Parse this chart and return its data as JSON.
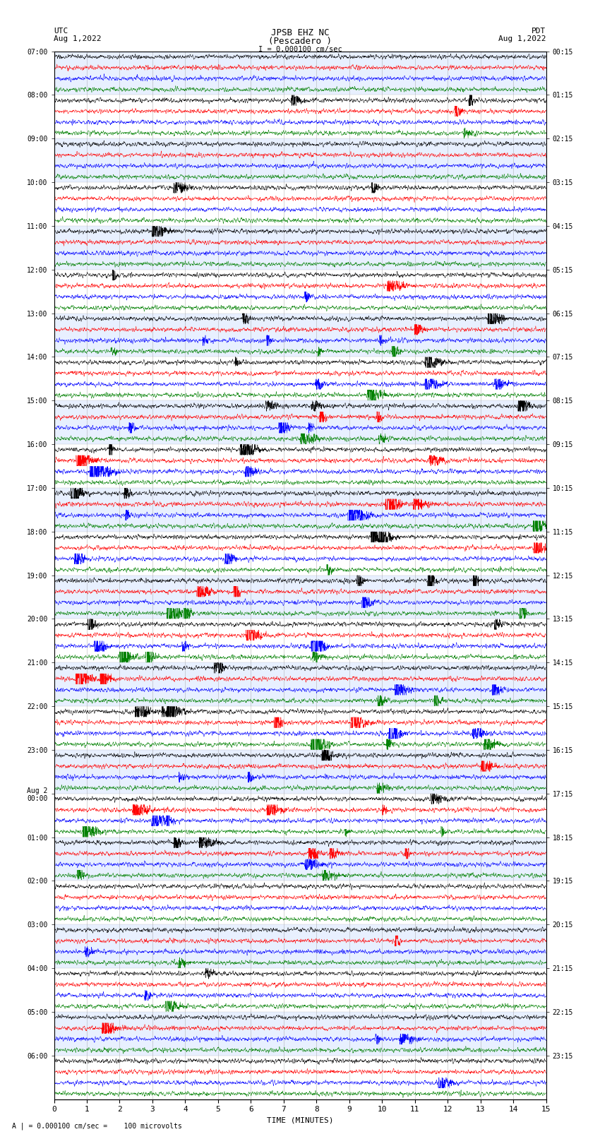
{
  "title_line1": "JPSB EHZ NC",
  "title_line2": "(Pescadero )",
  "scale_text": "I = 0.000100 cm/sec",
  "left_header_line1": "UTC",
  "left_header_line2": "Aug 1,2022",
  "right_header_line1": "PDT",
  "right_header_line2": "Aug 1,2022",
  "bottom_note": "A | = 0.000100 cm/sec =    100 microvolts",
  "xlabel": "TIME (MINUTES)",
  "hour_labels_left": [
    "07:00",
    "08:00",
    "09:00",
    "10:00",
    "11:00",
    "12:00",
    "13:00",
    "14:00",
    "15:00",
    "16:00",
    "17:00",
    "18:00",
    "19:00",
    "20:00",
    "21:00",
    "22:00",
    "23:00",
    "Aug 2\n00:00",
    "01:00",
    "02:00",
    "03:00",
    "04:00",
    "05:00",
    "06:00"
  ],
  "hour_labels_right": [
    "00:15",
    "01:15",
    "02:15",
    "03:15",
    "04:15",
    "05:15",
    "06:15",
    "07:15",
    "08:15",
    "09:15",
    "10:15",
    "11:15",
    "12:15",
    "13:15",
    "14:15",
    "15:15",
    "16:15",
    "17:15",
    "18:15",
    "19:15",
    "20:15",
    "21:15",
    "22:15",
    "23:15"
  ],
  "n_hours": 24,
  "traces_per_hour": 4,
  "colors": [
    "black",
    "red",
    "blue",
    "green"
  ],
  "x_ticks": [
    0,
    1,
    2,
    3,
    4,
    5,
    6,
    7,
    8,
    9,
    10,
    11,
    12,
    13,
    14,
    15
  ],
  "xlim": [
    0,
    15
  ],
  "noise_base": 0.18,
  "stripe_color_even": "#e8f0ff",
  "stripe_color_odd": "#ffffff"
}
